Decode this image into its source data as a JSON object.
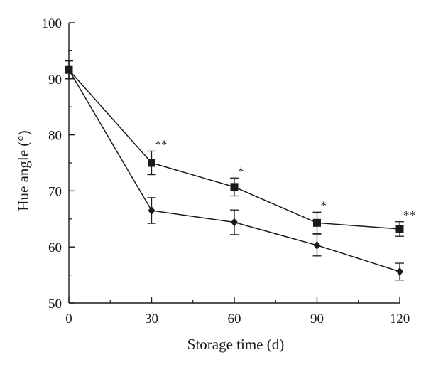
{
  "chart_data": {
    "type": "line",
    "xlabel": "Storage time (d)",
    "ylabel": "Hue angle (°)",
    "xlim": [
      0,
      120
    ],
    "ylim": [
      50,
      100
    ],
    "x_ticks": [
      0,
      30,
      60,
      90,
      120
    ],
    "y_ticks": [
      50,
      60,
      70,
      80,
      90,
      100
    ],
    "grid": false,
    "x": [
      0,
      30,
      60,
      90,
      120
    ],
    "series": [
      {
        "marker": "square",
        "values": [
          91.6,
          75.0,
          70.7,
          64.3,
          63.2
        ],
        "errors": [
          1.6,
          2.1,
          1.6,
          1.9,
          1.3
        ]
      },
      {
        "marker": "diamond",
        "values": [
          91.6,
          66.5,
          64.4,
          60.3,
          55.6
        ],
        "errors": [
          1.6,
          2.3,
          2.2,
          1.9,
          1.5
        ]
      }
    ],
    "annotations": [
      {
        "x": 30,
        "y": 77.2,
        "text": "**"
      },
      {
        "x": 60,
        "y": 72.4,
        "text": "*"
      },
      {
        "x": 90,
        "y": 66.3,
        "text": "*"
      },
      {
        "x": 120,
        "y": 64.6,
        "text": "**"
      }
    ],
    "colors": {
      "line": "#1a1a1a",
      "marker": "#1a1a1a"
    }
  }
}
